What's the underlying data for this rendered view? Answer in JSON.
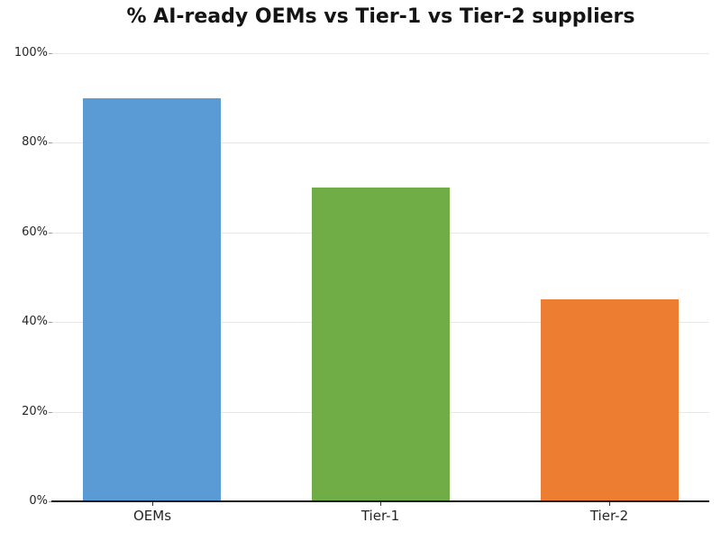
{
  "chart_data": {
    "type": "bar",
    "title": "% AI-ready OEMs vs Tier-1 vs Tier-2 suppliers",
    "categories": [
      "OEMs",
      "Tier-1",
      "Tier-2"
    ],
    "values": [
      90,
      70,
      45
    ],
    "value_unit": "%",
    "bar_colors": [
      "#5B9BD5",
      "#70AD47",
      "#ED7D31"
    ],
    "xlabel": "",
    "ylabel": "",
    "ylim": [
      0,
      100
    ],
    "ytick_values": [
      0,
      20,
      40,
      60,
      80,
      100
    ],
    "ytick_labels": [
      "0%",
      "20%",
      "40%",
      "60%",
      "80%",
      "100%"
    ],
    "grid": "horizontal",
    "legend": "none",
    "colors": {
      "background": "#ffffff",
      "grid_color": "#e8e8e8",
      "axis_line_color": "#1a1a1a",
      "tick_color": "#999999",
      "text_color": "#262626",
      "title_color": "#141414"
    }
  }
}
